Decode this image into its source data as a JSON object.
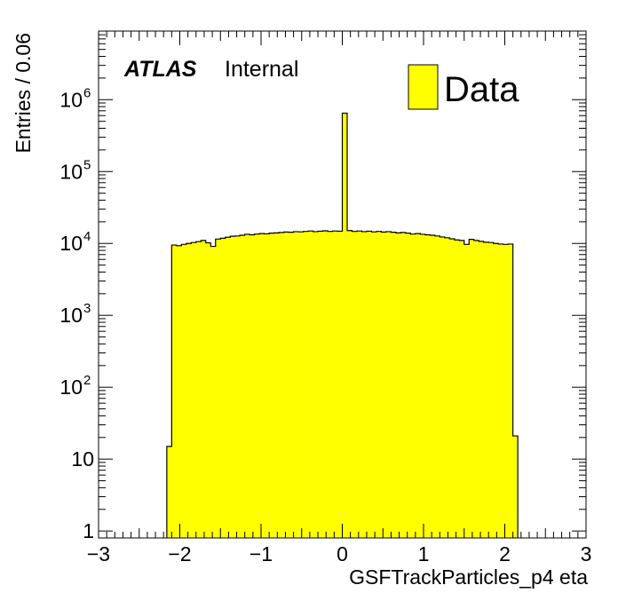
{
  "chart_data": {
    "type": "bar",
    "xlabel": "GSFTrackParticles_p4 eta",
    "ylabel": "Entries / 0.06",
    "xlim": [
      -3,
      3
    ],
    "ylim": [
      0.8,
      9000000
    ],
    "yscale": "log",
    "bin_width": 0.06,
    "x_tick_labels": [
      "−3",
      "−2",
      "−1",
      "0",
      "1",
      "2",
      "3"
    ],
    "y_tick_labels": [
      {
        "value": 1,
        "base": "1",
        "exp": ""
      },
      {
        "value": 10,
        "base": "10",
        "exp": ""
      },
      {
        "value": 100,
        "base": "10",
        "exp": "2"
      },
      {
        "value": 1000,
        "base": "10",
        "exp": "3"
      },
      {
        "value": 10000,
        "base": "10",
        "exp": "4"
      },
      {
        "value": 100000,
        "base": "10",
        "exp": "5"
      },
      {
        "value": 1000000,
        "base": "10",
        "exp": "6"
      }
    ],
    "label_atlas": "ATLAS",
    "label_status": "Internal",
    "legend": {
      "label": "Data",
      "color": "#ffff00",
      "position": "top-right"
    },
    "fill_color": "#ffff00",
    "line_color": "#000000",
    "series": [
      {
        "name": "Data",
        "bins": [
          {
            "x0": -2.16,
            "x1": -2.1,
            "y": 15
          },
          {
            "x0": -2.1,
            "x1": -2.04,
            "y": 9500
          },
          {
            "x0": -2.04,
            "x1": -1.98,
            "y": 9300
          },
          {
            "x0": -1.98,
            "x1": -1.92,
            "y": 9700
          },
          {
            "x0": -1.92,
            "x1": -1.86,
            "y": 10000
          },
          {
            "x0": -1.86,
            "x1": -1.8,
            "y": 10300
          },
          {
            "x0": -1.8,
            "x1": -1.74,
            "y": 10600
          },
          {
            "x0": -1.74,
            "x1": -1.68,
            "y": 11000
          },
          {
            "x0": -1.68,
            "x1": -1.62,
            "y": 10200
          },
          {
            "x0": -1.62,
            "x1": -1.56,
            "y": 9100
          },
          {
            "x0": -1.56,
            "x1": -1.5,
            "y": 11500
          },
          {
            "x0": -1.5,
            "x1": -1.44,
            "y": 11800
          },
          {
            "x0": -1.44,
            "x1": -1.38,
            "y": 12200
          },
          {
            "x0": -1.38,
            "x1": -1.32,
            "y": 12600
          },
          {
            "x0": -1.32,
            "x1": -1.26,
            "y": 12700
          },
          {
            "x0": -1.26,
            "x1": -1.2,
            "y": 13000
          },
          {
            "x0": -1.2,
            "x1": -1.14,
            "y": 13400
          },
          {
            "x0": -1.14,
            "x1": -1.08,
            "y": 13200
          },
          {
            "x0": -1.08,
            "x1": -1.02,
            "y": 13500
          },
          {
            "x0": -1.02,
            "x1": -0.96,
            "y": 13700
          },
          {
            "x0": -0.96,
            "x1": -0.9,
            "y": 13600
          },
          {
            "x0": -0.9,
            "x1": -0.84,
            "y": 13900
          },
          {
            "x0": -0.84,
            "x1": -0.78,
            "y": 14000
          },
          {
            "x0": -0.78,
            "x1": -0.72,
            "y": 14200
          },
          {
            "x0": -0.72,
            "x1": -0.66,
            "y": 14400
          },
          {
            "x0": -0.66,
            "x1": -0.6,
            "y": 14300
          },
          {
            "x0": -0.6,
            "x1": -0.54,
            "y": 14600
          },
          {
            "x0": -0.54,
            "x1": -0.48,
            "y": 14500
          },
          {
            "x0": -0.48,
            "x1": -0.42,
            "y": 14700
          },
          {
            "x0": -0.42,
            "x1": -0.36,
            "y": 14900
          },
          {
            "x0": -0.36,
            "x1": -0.3,
            "y": 14600
          },
          {
            "x0": -0.3,
            "x1": -0.24,
            "y": 14800
          },
          {
            "x0": -0.24,
            "x1": -0.18,
            "y": 15000
          },
          {
            "x0": -0.18,
            "x1": -0.12,
            "y": 14700
          },
          {
            "x0": -0.12,
            "x1": -0.06,
            "y": 14900
          },
          {
            "x0": -0.06,
            "x1": 0.0,
            "y": 14800
          },
          {
            "x0": 0.0,
            "x1": 0.06,
            "y": 650000
          },
          {
            "x0": 0.06,
            "x1": 0.12,
            "y": 15100
          },
          {
            "x0": 0.12,
            "x1": 0.18,
            "y": 14700
          },
          {
            "x0": 0.18,
            "x1": 0.24,
            "y": 14900
          },
          {
            "x0": 0.24,
            "x1": 0.3,
            "y": 14600
          },
          {
            "x0": 0.3,
            "x1": 0.36,
            "y": 14800
          },
          {
            "x0": 0.36,
            "x1": 0.42,
            "y": 14500
          },
          {
            "x0": 0.42,
            "x1": 0.48,
            "y": 14700
          },
          {
            "x0": 0.48,
            "x1": 0.54,
            "y": 14400
          },
          {
            "x0": 0.54,
            "x1": 0.6,
            "y": 14600
          },
          {
            "x0": 0.6,
            "x1": 0.66,
            "y": 14300
          },
          {
            "x0": 0.66,
            "x1": 0.72,
            "y": 14000
          },
          {
            "x0": 0.72,
            "x1": 0.78,
            "y": 14200
          },
          {
            "x0": 0.78,
            "x1": 0.84,
            "y": 13900
          },
          {
            "x0": 0.84,
            "x1": 0.9,
            "y": 13500
          },
          {
            "x0": 0.9,
            "x1": 0.96,
            "y": 13700
          },
          {
            "x0": 0.96,
            "x1": 1.02,
            "y": 13400
          },
          {
            "x0": 1.02,
            "x1": 1.08,
            "y": 13200
          },
          {
            "x0": 1.08,
            "x1": 1.14,
            "y": 13000
          },
          {
            "x0": 1.14,
            "x1": 1.2,
            "y": 12700
          },
          {
            "x0": 1.2,
            "x1": 1.26,
            "y": 12300
          },
          {
            "x0": 1.26,
            "x1": 1.32,
            "y": 12000
          },
          {
            "x0": 1.32,
            "x1": 1.38,
            "y": 11600
          },
          {
            "x0": 1.38,
            "x1": 1.44,
            "y": 11200
          },
          {
            "x0": 1.44,
            "x1": 1.5,
            "y": 11000
          },
          {
            "x0": 1.5,
            "x1": 1.56,
            "y": 9700
          },
          {
            "x0": 1.56,
            "x1": 1.62,
            "y": 11400
          },
          {
            "x0": 1.62,
            "x1": 1.68,
            "y": 11000
          },
          {
            "x0": 1.68,
            "x1": 1.74,
            "y": 10700
          },
          {
            "x0": 1.74,
            "x1": 1.8,
            "y": 10400
          },
          {
            "x0": 1.8,
            "x1": 1.86,
            "y": 10300
          },
          {
            "x0": 1.86,
            "x1": 1.92,
            "y": 10000
          },
          {
            "x0": 1.92,
            "x1": 1.98,
            "y": 9800
          },
          {
            "x0": 1.98,
            "x1": 2.04,
            "y": 9700
          },
          {
            "x0": 2.04,
            "x1": 2.1,
            "y": 9800
          },
          {
            "x0": 2.1,
            "x1": 2.16,
            "y": 21
          }
        ]
      }
    ]
  }
}
